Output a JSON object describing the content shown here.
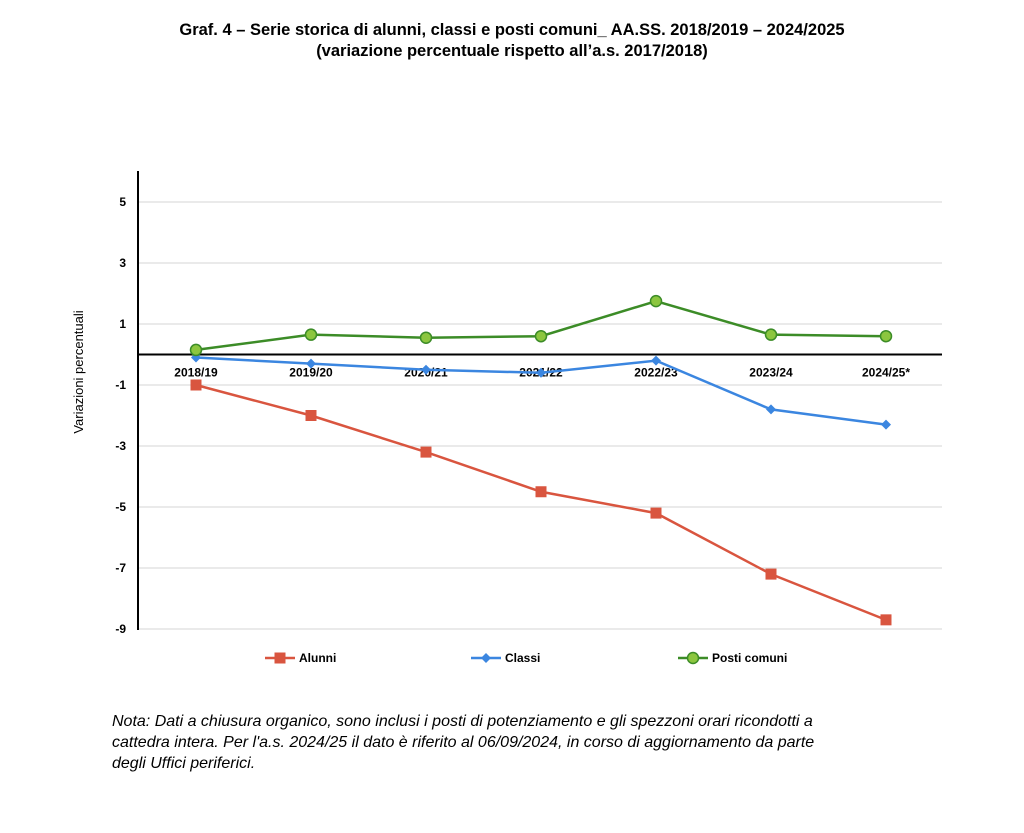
{
  "title": {
    "line1": "Graf. 4 – Serie storica di alunni, classi e posti comuni_ AA.SS. 2018/2019 – 2024/2025",
    "line2": "(variazione percentuale rispetto all’a.s. 2017/2018)"
  },
  "note": {
    "line1": "Nota: Dati a chiusura organico, sono inclusi i posti di potenziamento e gli spezzoni orari ricondotti a",
    "line2": "cattedra intera. Per l'a.s. 2024/25 il dato è riferito al 06/09/2024, in corso di aggiornamento da parte",
    "line3": "degli Uffici periferici."
  },
  "chart_data": {
    "type": "line",
    "title": "Graf. 4 – Serie storica di alunni, classi e posti comuni_ AA.SS. 2018/2019 – 2024/2025",
    "subtitle": "(variazione percentuale rispetto all’a.s. 2017/2018)",
    "xlabel": "",
    "ylabel": "Variazioni percentuali",
    "categories": [
      "2018/19",
      "2019/20",
      "2020/21",
      "2021/22",
      "2022/23",
      "2023/24",
      "2024/25*"
    ],
    "yticks": [
      5,
      3,
      1,
      -1,
      -3,
      -5,
      -7,
      -9
    ],
    "ylim": [
      -9,
      6
    ],
    "grid": true,
    "legend_position": "bottom",
    "series": [
      {
        "name": "Alunni",
        "color": "#d9553f",
        "marker": "square",
        "values": [
          -1.0,
          -2.0,
          -3.2,
          -4.5,
          -5.2,
          -7.2,
          -8.7
        ]
      },
      {
        "name": "Classi",
        "color": "#3b86e0",
        "marker": "diamond",
        "values": [
          -0.1,
          -0.3,
          -0.5,
          -0.6,
          -0.2,
          -1.8,
          -2.3
        ]
      },
      {
        "name": "Posti comuni",
        "color": "#3c8c27",
        "marker": "circle",
        "values": [
          0.15,
          0.65,
          0.55,
          0.6,
          1.75,
          0.65,
          0.6
        ]
      }
    ]
  }
}
